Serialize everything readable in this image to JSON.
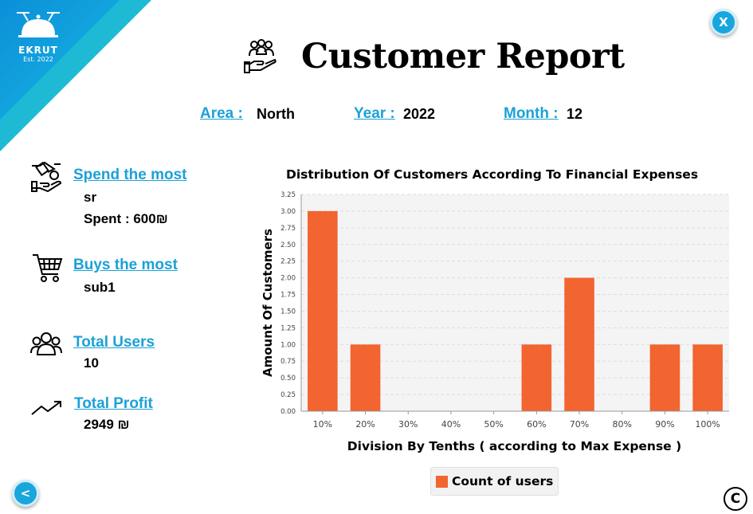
{
  "brand": {
    "name": "EKRUT",
    "est": "Est. 2022"
  },
  "header": {
    "title": "Customer Report",
    "close_label": "X"
  },
  "filters": {
    "area_label": "Area :",
    "area_value": "North",
    "year_label": "Year :",
    "year_value": "2022",
    "month_label": "Month :",
    "month_value": "12"
  },
  "stats": {
    "spend_most": {
      "label": "Spend the most",
      "name": "sr",
      "spent": "Spent : 600₪"
    },
    "buys_most": {
      "label": "Buys the most",
      "name": "sub1"
    },
    "total_users": {
      "label": "Total Users",
      "value": "10"
    },
    "total_profit": {
      "label": "Total Profit",
      "value": "2949 ₪"
    }
  },
  "footer": {
    "back_label": "<",
    "copyright": "C"
  },
  "colors": {
    "accent": "#1ba1d8",
    "bar": "#f26430",
    "ribbon": "#18a6dd"
  },
  "chart_data": {
    "type": "bar",
    "title": "Distribution Of Customers According To Financial Expenses",
    "xlabel": "Division By Tenths ( according to Max Expense )",
    "ylabel": "Amount Of Customers",
    "categories": [
      "10%",
      "20%",
      "30%",
      "40%",
      "50%",
      "60%",
      "70%",
      "80%",
      "90%",
      "100%"
    ],
    "series": [
      {
        "name": "Count of users",
        "values": [
          3,
          1,
          0,
          0,
          0,
          1,
          2,
          0,
          1,
          1
        ]
      }
    ],
    "ylim": [
      0,
      3.25
    ],
    "yticks": [
      "0.00",
      "0.25",
      "0.50",
      "0.75",
      "1.00",
      "1.25",
      "1.50",
      "1.75",
      "2.00",
      "2.25",
      "2.50",
      "2.75",
      "3.00",
      "3.25"
    ],
    "grid": true,
    "legend": "bottom"
  }
}
